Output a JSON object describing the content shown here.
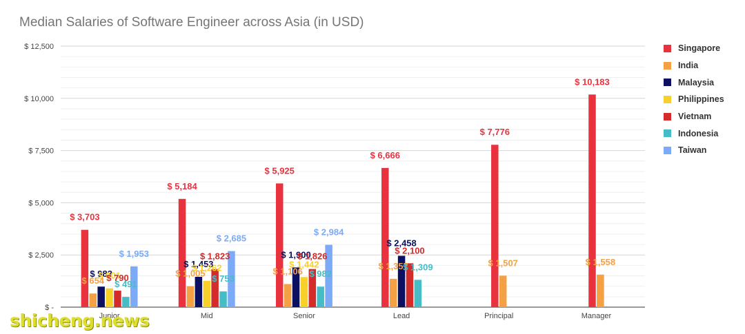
{
  "chart_data": {
    "type": "bar",
    "title": "Median Salaries of Software Engineer across Asia (in USD)",
    "categories": [
      "Junior",
      "Mid",
      "Senior",
      "Lead",
      "Principal",
      "Manager"
    ],
    "ylim": [
      0,
      12500
    ],
    "yticks": [
      0,
      2500,
      5000,
      7500,
      10000,
      12500
    ],
    "ytick_labels": [
      "$ -",
      "$ 2,500",
      "$ 5,000",
      "$ 7,500",
      "$ 10,000",
      "$ 12,500"
    ],
    "grid": true,
    "legend_position": "right",
    "series": [
      {
        "name": "Singapore",
        "color": "#e8333f",
        "values": [
          3703,
          5184,
          5925,
          6666,
          7776,
          10183
        ],
        "labels": [
          "$ 3,703",
          "$ 5,184",
          "$ 5,925",
          "$ 6,666",
          "$ 7,776",
          "$ 10,183"
        ]
      },
      {
        "name": "India",
        "color": "#f4a045",
        "values": [
          654,
          1005,
          1106,
          1357,
          1507,
          1558
        ],
        "labels": [
          "$ 654",
          "$ 1,005",
          "$ 1,106",
          "$ 1,357",
          "$ 1,507",
          "$ 1,558"
        ]
      },
      {
        "name": "Malaysia",
        "color": "#0b1060",
        "values": [
          983,
          1453,
          1900,
          2458,
          null,
          null
        ],
        "labels": [
          "$ 983",
          "$ 1,453",
          "$ 1,900",
          "$ 2,458",
          null,
          null
        ]
      },
      {
        "name": "Philippines",
        "color": "#f7d12a",
        "values": [
          901,
          1262,
          1442,
          null,
          null,
          null
        ],
        "labels": [
          "$ 901",
          "$ 1,262",
          "$ 1,442",
          null,
          null,
          null
        ]
      },
      {
        "name": "Vietnam",
        "color": "#d42b2b",
        "values": [
          790,
          1823,
          1826,
          2100,
          null,
          null
        ],
        "labels": [
          "$ 790",
          "$ 1,823",
          "$ 1,826",
          "$ 2,100",
          null,
          null
        ]
      },
      {
        "name": "Indonesia",
        "color": "#46bdc6",
        "values": [
          491,
          753,
          982,
          1309,
          null,
          null
        ],
        "labels": [
          "$ 491",
          "$ 753",
          "$ 982",
          "$ 1,309",
          null,
          null
        ]
      },
      {
        "name": "Taiwan",
        "color": "#7baaf7",
        "values": [
          1953,
          2685,
          2984,
          null,
          null,
          null
        ],
        "labels": [
          "$ 1,953",
          "$ 2,685",
          "$ 2,984",
          null,
          null,
          null
        ]
      }
    ]
  },
  "watermark": "shicheng.news"
}
